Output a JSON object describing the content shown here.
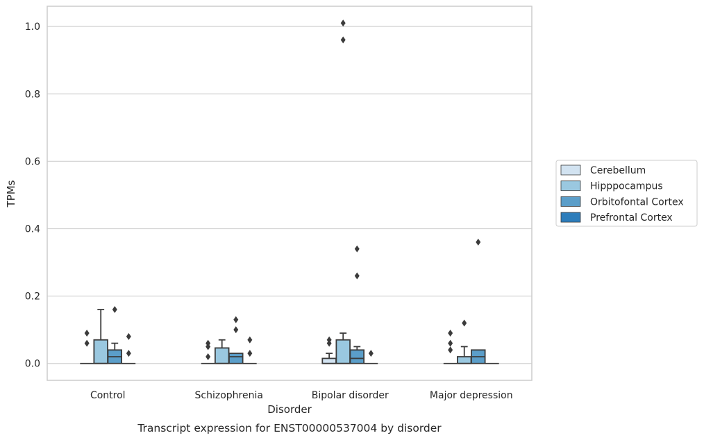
{
  "chart_data": {
    "type": "box",
    "title": "",
    "caption": "Transcript expression for ENST00000537004 by disorder",
    "xlabel": "Disorder",
    "ylabel": "TPMs",
    "ylim": [
      -0.05,
      1.06
    ],
    "yticks": [
      "0.0",
      "0.2",
      "0.4",
      "0.6",
      "0.8",
      "1.0"
    ],
    "ytick_values": [
      0.0,
      0.2,
      0.4,
      0.6,
      0.8,
      1.0
    ],
    "grid": true,
    "legend_placement": "right",
    "categories": [
      "Control",
      "Schizophrenia",
      "Bipolar disorder",
      "Major depression"
    ],
    "series": [
      {
        "name": "Cerebellum",
        "color": "#d2e3f1",
        "boxes": [
          {
            "q1": 0.0,
            "median": 0.0,
            "q3": 0.0,
            "whisker_low": 0.0,
            "whisker_high": 0.0,
            "outliers": [
              0.06,
              0.09
            ]
          },
          {
            "q1": 0.0,
            "median": 0.0,
            "q3": 0.0,
            "whisker_low": 0.0,
            "whisker_high": 0.0,
            "outliers": [
              0.02,
              0.05,
              0.06
            ]
          },
          {
            "q1": 0.0,
            "median": 0.0,
            "q3": 0.015,
            "whisker_low": 0.0,
            "whisker_high": 0.03,
            "outliers": [
              0.06,
              0.07
            ]
          },
          {
            "q1": 0.0,
            "median": 0.0,
            "q3": 0.0,
            "whisker_low": 0.0,
            "whisker_high": 0.0,
            "outliers": [
              0.04,
              0.06,
              0.09
            ]
          }
        ]
      },
      {
        "name": "Hipppocampus",
        "color": "#9ac8e0",
        "boxes": [
          {
            "q1": 0.0,
            "median": 0.0,
            "q3": 0.07,
            "whisker_low": 0.0,
            "whisker_high": 0.16,
            "outliers": []
          },
          {
            "q1": 0.0,
            "median": 0.0,
            "q3": 0.046,
            "whisker_low": 0.0,
            "whisker_high": 0.07,
            "outliers": []
          },
          {
            "q1": 0.0,
            "median": 0.0,
            "q3": 0.07,
            "whisker_low": 0.0,
            "whisker_high": 0.09,
            "outliers": [
              0.96,
              1.01
            ]
          },
          {
            "q1": 0.0,
            "median": 0.0,
            "q3": 0.02,
            "whisker_low": 0.0,
            "whisker_high": 0.05,
            "outliers": [
              0.12
            ]
          }
        ]
      },
      {
        "name": "Orbitofontal Cortex",
        "color": "#5b9ec9",
        "boxes": [
          {
            "q1": 0.0,
            "median": 0.02,
            "q3": 0.04,
            "whisker_low": 0.0,
            "whisker_high": 0.06,
            "outliers": [
              0.16
            ]
          },
          {
            "q1": 0.0,
            "median": 0.02,
            "q3": 0.03,
            "whisker_low": 0.0,
            "whisker_high": 0.03,
            "outliers": [
              0.1,
              0.13
            ]
          },
          {
            "q1": 0.0,
            "median": 0.015,
            "q3": 0.04,
            "whisker_low": 0.0,
            "whisker_high": 0.05,
            "outliers": [
              0.26,
              0.34
            ]
          },
          {
            "q1": 0.0,
            "median": 0.02,
            "q3": 0.04,
            "whisker_low": 0.0,
            "whisker_high": 0.04,
            "outliers": [
              0.36
            ]
          }
        ]
      },
      {
        "name": "Prefrontal Cortex",
        "color": "#2d7dbb",
        "boxes": [
          {
            "q1": 0.0,
            "median": 0.0,
            "q3": 0.0,
            "whisker_low": 0.0,
            "whisker_high": 0.0,
            "outliers": [
              0.03,
              0.08
            ]
          },
          {
            "q1": 0.0,
            "median": 0.0,
            "q3": 0.0,
            "whisker_low": 0.0,
            "whisker_high": 0.0,
            "outliers": [
              0.03,
              0.07
            ]
          },
          {
            "q1": 0.0,
            "median": 0.0,
            "q3": 0.0,
            "whisker_low": 0.0,
            "whisker_high": 0.0,
            "outliers": [
              0.03
            ]
          },
          {
            "q1": 0.0,
            "median": 0.0,
            "q3": 0.0,
            "whisker_low": 0.0,
            "whisker_high": 0.0,
            "outliers": []
          }
        ]
      }
    ]
  }
}
